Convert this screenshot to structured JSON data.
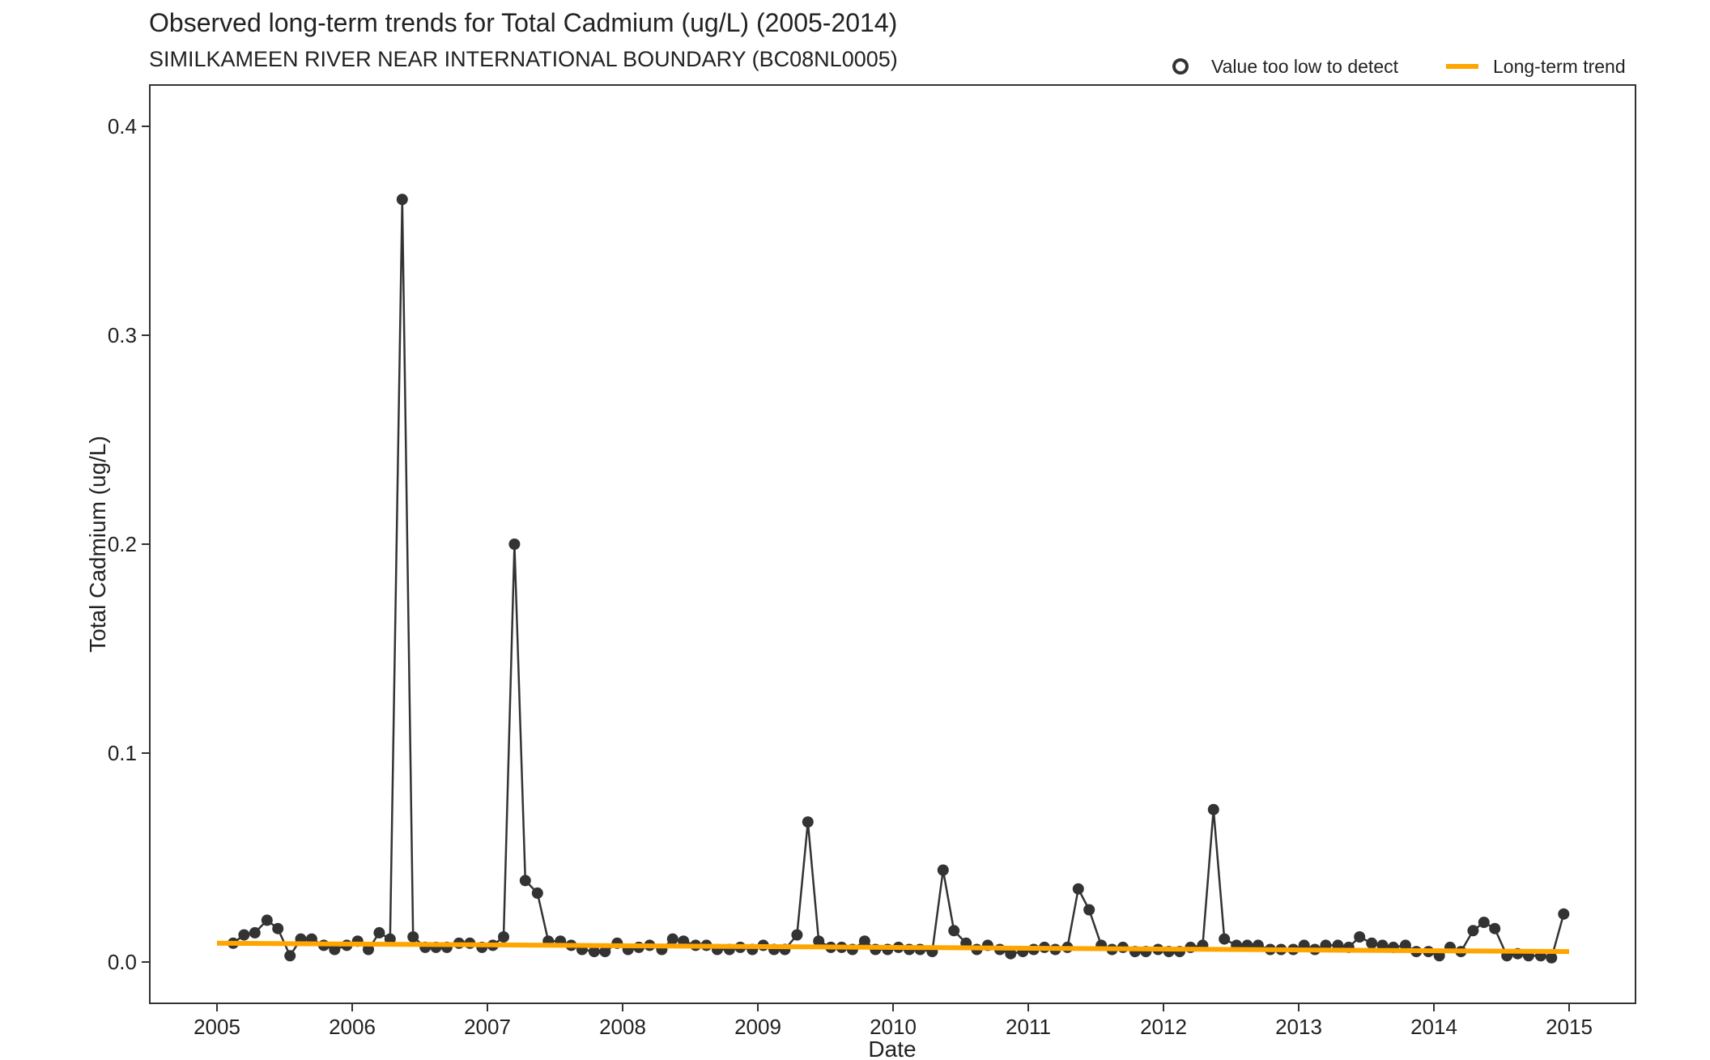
{
  "chart_data": {
    "type": "line",
    "title": "Observed long-term trends for Total Cadmium (ug/L) (2005-2014)",
    "subtitle": "SIMILKAMEEN RIVER NEAR INTERNATIONAL BOUNDARY (BC08NL0005)",
    "xlabel": "Date",
    "ylabel": "Total Cadmium (ug/L)",
    "xlim": [
      2005.0,
      2015.0
    ],
    "ylim": [
      0.0,
      0.4
    ],
    "x_ticks": [
      "2005",
      "2006",
      "2007",
      "2008",
      "2009",
      "2010",
      "2011",
      "2012",
      "2013",
      "2014",
      "2015"
    ],
    "y_ticks": [
      "0.0",
      "0.1",
      "0.2",
      "0.3",
      "0.4"
    ],
    "grid": false,
    "legend_position": "top-right",
    "legend": [
      {
        "label": "Value too low to detect",
        "kind": "open-circle"
      },
      {
        "label": "Long-term trend",
        "kind": "line"
      }
    ],
    "colors": {
      "observed": "#333333",
      "trend": "#ffa500"
    },
    "series": [
      {
        "kind": "observed",
        "x": [
          2005.12,
          2005.2,
          2005.28,
          2005.37,
          2005.45,
          2005.54,
          2005.62,
          2005.7,
          2005.79,
          2005.87,
          2005.96,
          2006.04,
          2006.12,
          2006.2,
          2006.28,
          2006.37,
          2006.45,
          2006.54,
          2006.62,
          2006.7,
          2006.79,
          2006.87,
          2006.96,
          2007.04,
          2007.12,
          2007.2,
          2007.28,
          2007.37,
          2007.45,
          2007.54,
          2007.62,
          2007.7,
          2007.79,
          2007.87,
          2007.96,
          2008.04,
          2008.12,
          2008.2,
          2008.29,
          2008.37,
          2008.45,
          2008.54,
          2008.62,
          2008.7,
          2008.79,
          2008.87,
          2008.96,
          2009.04,
          2009.12,
          2009.2,
          2009.29,
          2009.37,
          2009.45,
          2009.54,
          2009.62,
          2009.7,
          2009.79,
          2009.87,
          2009.96,
          2010.04,
          2010.12,
          2010.2,
          2010.29,
          2010.37,
          2010.45,
          2010.54,
          2010.62,
          2010.7,
          2010.79,
          2010.87,
          2010.96,
          2011.04,
          2011.12,
          2011.2,
          2011.29,
          2011.37,
          2011.45,
          2011.54,
          2011.62,
          2011.7,
          2011.79,
          2011.87,
          2011.96,
          2012.04,
          2012.12,
          2012.2,
          2012.29,
          2012.37,
          2012.45,
          2012.54,
          2012.62,
          2012.7,
          2012.79,
          2012.87,
          2012.96,
          2013.04,
          2013.12,
          2013.2,
          2013.29,
          2013.37,
          2013.45,
          2013.54,
          2013.62,
          2013.7,
          2013.79,
          2013.87,
          2013.96,
          2014.04,
          2014.12,
          2014.2,
          2014.29,
          2014.37,
          2014.45,
          2014.54,
          2014.62,
          2014.7,
          2014.79,
          2014.87,
          2014.96
        ],
        "y": [
          0.009,
          0.013,
          0.014,
          0.02,
          0.016,
          0.003,
          0.011,
          0.011,
          0.008,
          0.006,
          0.008,
          0.01,
          0.006,
          0.014,
          0.011,
          0.365,
          0.012,
          0.007,
          0.007,
          0.007,
          0.009,
          0.009,
          0.007,
          0.008,
          0.012,
          0.2,
          0.039,
          0.033,
          0.01,
          0.01,
          0.008,
          0.006,
          0.005,
          0.005,
          0.009,
          0.006,
          0.007,
          0.008,
          0.006,
          0.011,
          0.01,
          0.008,
          0.008,
          0.006,
          0.006,
          0.007,
          0.006,
          0.008,
          0.006,
          0.006,
          0.013,
          0.067,
          0.01,
          0.007,
          0.007,
          0.006,
          0.01,
          0.006,
          0.006,
          0.007,
          0.006,
          0.006,
          0.005,
          0.044,
          0.015,
          0.009,
          0.006,
          0.008,
          0.006,
          0.004,
          0.005,
          0.006,
          0.007,
          0.006,
          0.007,
          0.035,
          0.025,
          0.008,
          0.006,
          0.007,
          0.005,
          0.005,
          0.006,
          0.005,
          0.005,
          0.007,
          0.008,
          0.073,
          0.011,
          0.008,
          0.008,
          0.008,
          0.006,
          0.006,
          0.006,
          0.008,
          0.006,
          0.008,
          0.008,
          0.007,
          0.012,
          0.009,
          0.008,
          0.007,
          0.008,
          0.005,
          0.005,
          0.003,
          0.007,
          0.005,
          0.015,
          0.019,
          0.016,
          0.003,
          0.004,
          0.003,
          0.003,
          0.002,
          0.023
        ]
      },
      {
        "kind": "trend",
        "name": "Long-term trend",
        "x": [
          2005.0,
          2015.0
        ],
        "y": [
          0.009,
          0.005
        ]
      }
    ]
  }
}
